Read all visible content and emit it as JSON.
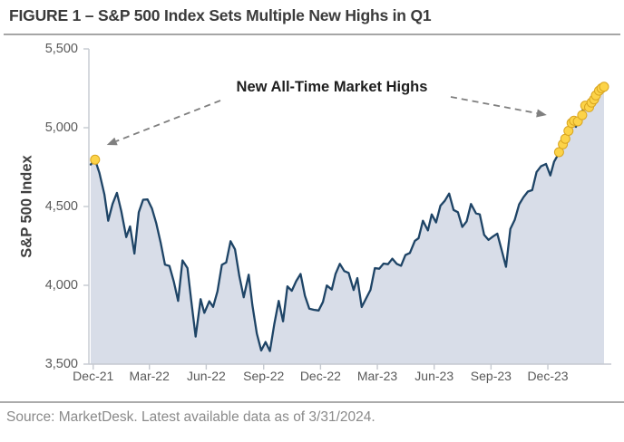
{
  "title": "FIGURE 1 – S&P 500 Index Sets Multiple New Highs in Q1",
  "footer": {
    "source": "Source: MarketDesk. Latest available data as of 3/31/2024."
  },
  "chart_data": {
    "type": "area",
    "title": "S&P 500 Index Sets Multiple New Highs in Q1",
    "ylabel": "S&P 500 Index",
    "annotation": "New All-Time Market Highs",
    "ylim": [
      3500,
      5500
    ],
    "grid": false,
    "legend": "none",
    "x_range": [
      "2021-12-27",
      "2024-03-28"
    ],
    "y_ticks": [
      {
        "value": 5500,
        "label": "5,500"
      },
      {
        "value": 5000,
        "label": "5,000"
      },
      {
        "value": 4500,
        "label": "4,500"
      },
      {
        "value": 4000,
        "label": "4,000"
      },
      {
        "value": 3500,
        "label": "3,500"
      }
    ],
    "x_ticks": [
      {
        "date": "2021-12-31",
        "label": "Dec-21"
      },
      {
        "date": "2022-03-31",
        "label": "Mar-22"
      },
      {
        "date": "2022-06-30",
        "label": "Jun-22"
      },
      {
        "date": "2022-09-30",
        "label": "Sep-22"
      },
      {
        "date": "2022-12-30",
        "label": "Dec-22"
      },
      {
        "date": "2023-03-31",
        "label": "Mar-23"
      },
      {
        "date": "2023-06-30",
        "label": "Jun-23"
      },
      {
        "date": "2023-09-29",
        "label": "Sep-23"
      },
      {
        "date": "2023-12-29",
        "label": "Dec-23"
      }
    ],
    "series": [
      {
        "name": "S&P 500 Index",
        "points": [
          [
            "2021-12-27",
            4766
          ],
          [
            "2022-01-03",
            4797
          ],
          [
            "2022-01-10",
            4713
          ],
          [
            "2022-01-18",
            4577
          ],
          [
            "2022-01-24",
            4410
          ],
          [
            "2022-01-31",
            4516
          ],
          [
            "2022-02-07",
            4587
          ],
          [
            "2022-02-14",
            4471
          ],
          [
            "2022-02-22",
            4306
          ],
          [
            "2022-02-28",
            4374
          ],
          [
            "2022-03-07",
            4201
          ],
          [
            "2022-03-14",
            4463
          ],
          [
            "2022-03-21",
            4543
          ],
          [
            "2022-03-28",
            4545
          ],
          [
            "2022-04-04",
            4488
          ],
          [
            "2022-04-11",
            4393
          ],
          [
            "2022-04-18",
            4272
          ],
          [
            "2022-04-25",
            4131
          ],
          [
            "2022-05-02",
            4123
          ],
          [
            "2022-05-09",
            4024
          ],
          [
            "2022-05-16",
            3901
          ],
          [
            "2022-05-23",
            4158
          ],
          [
            "2022-05-31",
            4109
          ],
          [
            "2022-06-06",
            3901
          ],
          [
            "2022-06-13",
            3675
          ],
          [
            "2022-06-21",
            3912
          ],
          [
            "2022-06-27",
            3825
          ],
          [
            "2022-07-05",
            3899
          ],
          [
            "2022-07-11",
            3863
          ],
          [
            "2022-07-18",
            3962
          ],
          [
            "2022-07-25",
            4130
          ],
          [
            "2022-08-01",
            4145
          ],
          [
            "2022-08-08",
            4280
          ],
          [
            "2022-08-15",
            4228
          ],
          [
            "2022-08-22",
            4058
          ],
          [
            "2022-08-29",
            3924
          ],
          [
            "2022-09-06",
            4067
          ],
          [
            "2022-09-12",
            3873
          ],
          [
            "2022-09-19",
            3693
          ],
          [
            "2022-09-26",
            3586
          ],
          [
            "2022-10-03",
            3640
          ],
          [
            "2022-10-10",
            3583
          ],
          [
            "2022-10-17",
            3753
          ],
          [
            "2022-10-24",
            3901
          ],
          [
            "2022-10-31",
            3771
          ],
          [
            "2022-11-07",
            3993
          ],
          [
            "2022-11-14",
            3965
          ],
          [
            "2022-11-21",
            4026
          ],
          [
            "2022-11-28",
            4072
          ],
          [
            "2022-12-05",
            3934
          ],
          [
            "2022-12-12",
            3852
          ],
          [
            "2022-12-19",
            3845
          ],
          [
            "2022-12-27",
            3840
          ],
          [
            "2023-01-03",
            3895
          ],
          [
            "2023-01-09",
            3999
          ],
          [
            "2023-01-17",
            3973
          ],
          [
            "2023-01-23",
            4071
          ],
          [
            "2023-01-30",
            4136
          ],
          [
            "2023-02-06",
            4090
          ],
          [
            "2023-02-13",
            4079
          ],
          [
            "2023-02-21",
            3970
          ],
          [
            "2023-02-27",
            4046
          ],
          [
            "2023-03-06",
            3862
          ],
          [
            "2023-03-13",
            3917
          ],
          [
            "2023-03-20",
            3971
          ],
          [
            "2023-03-27",
            4109
          ],
          [
            "2023-04-03",
            4105
          ],
          [
            "2023-04-10",
            4138
          ],
          [
            "2023-04-17",
            4134
          ],
          [
            "2023-04-24",
            4169
          ],
          [
            "2023-05-01",
            4136
          ],
          [
            "2023-05-08",
            4124
          ],
          [
            "2023-05-15",
            4192
          ],
          [
            "2023-05-22",
            4205
          ],
          [
            "2023-05-30",
            4282
          ],
          [
            "2023-06-05",
            4299
          ],
          [
            "2023-06-12",
            4410
          ],
          [
            "2023-06-20",
            4348
          ],
          [
            "2023-06-26",
            4450
          ],
          [
            "2023-07-03",
            4399
          ],
          [
            "2023-07-10",
            4505
          ],
          [
            "2023-07-17",
            4536
          ],
          [
            "2023-07-24",
            4582
          ],
          [
            "2023-07-31",
            4478
          ],
          [
            "2023-08-07",
            4464
          ],
          [
            "2023-08-14",
            4370
          ],
          [
            "2023-08-21",
            4406
          ],
          [
            "2023-08-28",
            4516
          ],
          [
            "2023-09-05",
            4457
          ],
          [
            "2023-09-11",
            4450
          ],
          [
            "2023-09-18",
            4320
          ],
          [
            "2023-09-25",
            4288
          ],
          [
            "2023-10-02",
            4309
          ],
          [
            "2023-10-09",
            4328
          ],
          [
            "2023-10-16",
            4224
          ],
          [
            "2023-10-23",
            4117
          ],
          [
            "2023-10-30",
            4358
          ],
          [
            "2023-11-06",
            4415
          ],
          [
            "2023-11-13",
            4514
          ],
          [
            "2023-11-20",
            4559
          ],
          [
            "2023-11-27",
            4595
          ],
          [
            "2023-12-04",
            4604
          ],
          [
            "2023-12-11",
            4719
          ],
          [
            "2023-12-18",
            4755
          ],
          [
            "2023-12-26",
            4770
          ],
          [
            "2024-01-02",
            4697
          ],
          [
            "2024-01-08",
            4784
          ],
          [
            "2024-01-16",
            4840
          ],
          [
            "2024-01-22",
            4891
          ],
          [
            "2024-01-29",
            4959
          ],
          [
            "2024-02-05",
            5027
          ],
          [
            "2024-02-12",
            5006
          ],
          [
            "2024-02-20",
            5089
          ],
          [
            "2024-02-26",
            5137
          ],
          [
            "2024-03-04",
            5124
          ],
          [
            "2024-03-11",
            5175
          ],
          [
            "2024-03-18",
            5234
          ],
          [
            "2024-03-25",
            5254
          ],
          [
            "2024-03-28",
            5254
          ]
        ]
      }
    ],
    "highs": {
      "label": "New All-Time Market Highs",
      "points": [
        [
          "2022-01-03",
          4797
        ],
        [
          "2024-01-16",
          4845
        ],
        [
          "2024-01-22",
          4895
        ],
        [
          "2024-01-26",
          4930
        ],
        [
          "2024-01-31",
          4980
        ],
        [
          "2024-02-05",
          5030
        ],
        [
          "2024-02-09",
          5045
        ],
        [
          "2024-02-15",
          5040
        ],
        [
          "2024-02-22",
          5080
        ],
        [
          "2024-02-27",
          5140
        ],
        [
          "2024-03-04",
          5130
        ],
        [
          "2024-03-08",
          5160
        ],
        [
          "2024-03-12",
          5180
        ],
        [
          "2024-03-15",
          5205
        ],
        [
          "2024-03-20",
          5235
        ],
        [
          "2024-03-24",
          5250
        ],
        [
          "2024-03-28",
          5260
        ]
      ]
    },
    "colors": {
      "line": "#1e4466",
      "fill": "#d8dde8",
      "high_dot": "#fcd348",
      "high_dot_border": "#d9a520",
      "axis": "#c5c9d0",
      "tick_label": "#595959",
      "arrow": "#7f7f7f",
      "title": "#3b3b3b",
      "annotation": "#1e1e1e",
      "source": "#8a8a8a"
    }
  }
}
